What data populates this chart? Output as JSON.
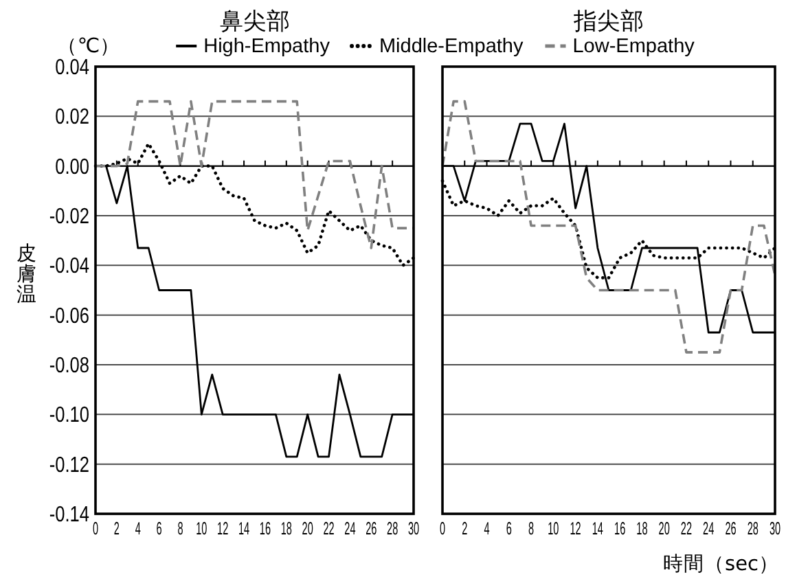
{
  "chart_data": [
    {
      "type": "line",
      "title": "鼻尖部",
      "ylabel": "皮膚温",
      "annotations": [
        "（℃）"
      ],
      "legend": "top",
      "grid": "y",
      "xlim": [
        0,
        30
      ],
      "xticks": [
        0,
        2,
        4,
        6,
        8,
        10,
        12,
        14,
        16,
        18,
        20,
        22,
        24,
        26,
        28,
        30
      ],
      "ylim": [
        -0.14,
        0.04
      ],
      "yticks": [
        -0.14,
        -0.12,
        {
          "value": -0.1,
          "label": "-0.10"
        },
        -0.08,
        -0.06,
        -0.04,
        -0.02,
        {
          "value": 0,
          "label": "0.00"
        },
        0.02,
        0.04
      ],
      "x": [
        0,
        1,
        2,
        3,
        4,
        5,
        6,
        7,
        8,
        9,
        10,
        11,
        12,
        13,
        14,
        15,
        16,
        17,
        18,
        19,
        20,
        21,
        22,
        23,
        24,
        25,
        26,
        27,
        28,
        29,
        30
      ],
      "series": [
        {
          "name": "High-Empathy",
          "color": "#000000",
          "line_style": "solid",
          "values": [
            0,
            0,
            -0.015,
            0,
            -0.033,
            -0.033,
            -0.05,
            -0.05,
            -0.05,
            -0.05,
            -0.1,
            -0.084,
            -0.1,
            -0.1,
            -0.1,
            -0.1,
            -0.1,
            -0.1,
            -0.117,
            -0.117,
            -0.1,
            -0.117,
            -0.117,
            -0.084,
            -0.1,
            -0.117,
            -0.117,
            -0.117,
            -0.1,
            -0.1,
            -0.1
          ]
        },
        {
          "name": "Middle-Empathy",
          "color": "#000000",
          "line_style": "dotted",
          "values": [
            0,
            0,
            0.001,
            0.003,
            0.001,
            0.009,
            0.002,
            -0.007,
            -0.004,
            -0.007,
            0,
            0,
            -0.009,
            -0.012,
            -0.013,
            -0.022,
            -0.024,
            -0.025,
            -0.023,
            -0.026,
            -0.035,
            -0.032,
            -0.018,
            -0.022,
            -0.026,
            -0.024,
            -0.03,
            -0.032,
            -0.033,
            -0.04,
            -0.037
          ]
        },
        {
          "name": "Low-Empathy",
          "color": "#808080",
          "line_style": "dashed",
          "values": [
            0,
            0,
            0,
            0.001,
            0.026,
            0.026,
            0.026,
            0.026,
            0,
            0.026,
            0,
            0.026,
            0.026,
            0.026,
            0.026,
            0.026,
            0.026,
            0.026,
            0.026,
            0.026,
            -0.026,
            -0.012,
            0.002,
            0.002,
            0.002,
            -0.016,
            -0.033,
            0,
            -0.025,
            -0.025,
            -0.025
          ]
        }
      ]
    },
    {
      "type": "line",
      "title": "指尖部",
      "xlabel": "時間（sec）",
      "grid": "y",
      "tick_labels": "x",
      "xlim": [
        0,
        30
      ],
      "xticks": [
        0,
        2,
        4,
        6,
        8,
        10,
        12,
        14,
        16,
        18,
        20,
        22,
        24,
        26,
        28,
        30
      ],
      "ylim": [
        -0.14,
        0.04
      ],
      "yticks": [
        -0.14,
        -0.12,
        -0.1,
        -0.08,
        -0.06,
        -0.04,
        -0.02,
        0,
        0.02,
        0.04
      ],
      "x": [
        0,
        1,
        2,
        3,
        4,
        5,
        6,
        7,
        8,
        9,
        10,
        11,
        12,
        13,
        14,
        15,
        16,
        17,
        18,
        19,
        20,
        21,
        22,
        23,
        24,
        25,
        26,
        27,
        28,
        29,
        30
      ],
      "series": [
        {
          "color": "#000000",
          "line_style": "solid",
          "values": [
            0,
            0,
            -0.014,
            0.002,
            0.002,
            0.002,
            0.002,
            0.017,
            0.017,
            0.002,
            0.002,
            0.017,
            -0.017,
            0,
            -0.033,
            -0.05,
            -0.05,
            -0.05,
            -0.033,
            -0.033,
            -0.033,
            -0.033,
            -0.033,
            -0.033,
            -0.067,
            -0.067,
            -0.05,
            -0.05,
            -0.067,
            -0.067,
            -0.067
          ]
        },
        {
          "color": "#000000",
          "line_style": "dotted",
          "values": [
            -0.006,
            -0.016,
            -0.014,
            -0.016,
            -0.017,
            -0.02,
            -0.014,
            -0.019,
            -0.016,
            -0.016,
            -0.013,
            -0.019,
            -0.024,
            -0.041,
            -0.045,
            -0.045,
            -0.037,
            -0.035,
            -0.03,
            -0.036,
            -0.037,
            -0.037,
            -0.037,
            -0.037,
            -0.033,
            -0.033,
            -0.033,
            -0.033,
            -0.035,
            -0.037,
            -0.033
          ]
        },
        {
          "color": "#808080",
          "line_style": "dashed",
          "values": [
            0,
            0.026,
            0.026,
            0.002,
            0.002,
            0.002,
            0.002,
            0.002,
            -0.024,
            -0.024,
            -0.024,
            -0.024,
            -0.024,
            -0.045,
            -0.05,
            -0.05,
            -0.05,
            -0.05,
            -0.05,
            -0.05,
            -0.05,
            -0.05,
            -0.075,
            -0.075,
            -0.075,
            -0.075,
            -0.05,
            -0.05,
            -0.024,
            -0.024,
            -0.044
          ]
        }
      ]
    }
  ]
}
